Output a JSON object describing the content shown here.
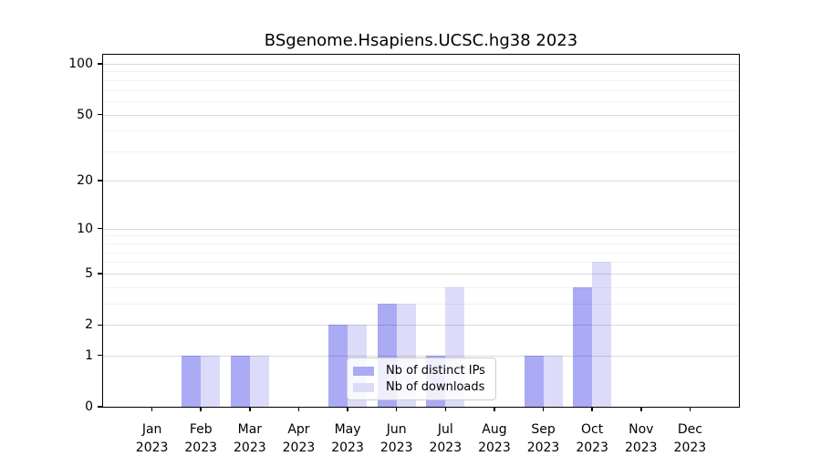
{
  "chart_data": {
    "type": "bar",
    "title": "BSgenome.Hsapiens.UCSC.hg38 2023",
    "x_categories": [
      "Jan",
      "Feb",
      "Mar",
      "Apr",
      "May",
      "Jun",
      "Jul",
      "Aug",
      "Sep",
      "Oct",
      "Nov",
      "Dec"
    ],
    "x_year_label": "2023",
    "series": [
      {
        "name": "Nb of distinct IPs",
        "color": "#aaaaf5",
        "values": [
          0,
          1,
          1,
          0,
          2,
          3,
          1,
          0,
          1,
          4,
          0,
          0
        ]
      },
      {
        "name": "Nb of downloads",
        "color": "#dcdcfa",
        "values": [
          0,
          1,
          1,
          0,
          2,
          3,
          4,
          0,
          1,
          6,
          0,
          0
        ]
      }
    ],
    "yscale": "log1p",
    "ylim": [
      0,
      113
    ],
    "y_major_ticks": [
      100,
      50,
      20,
      10,
      5,
      2,
      1,
      0
    ],
    "y_minor_gridlines": [
      90,
      80,
      70,
      60,
      40,
      30,
      9,
      8,
      7,
      6,
      4,
      3
    ],
    "grid": true,
    "legend_position": "lower-center",
    "background": "#ffffff"
  }
}
